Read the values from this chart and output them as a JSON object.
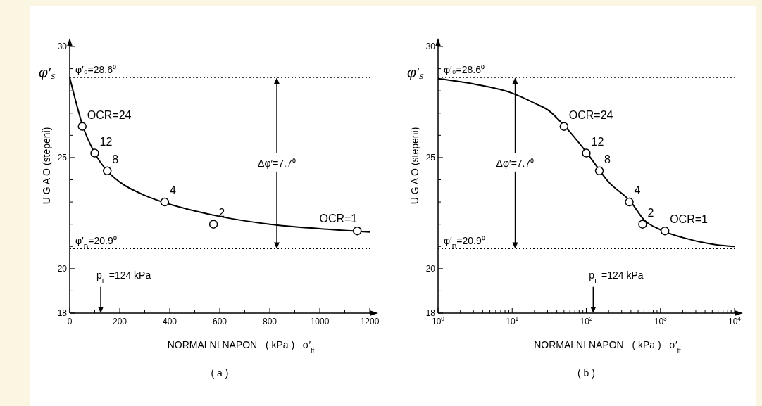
{
  "chart_data": [
    {
      "type": "scatter",
      "title": "( a )",
      "xlabel": "NORMALNI NAPON   ( kPa )   σ′$_{ff}$",
      "ylabel": "U G A O (stepeni)",
      "xlim": [
        0,
        1200
      ],
      "ylim": [
        18,
        30
      ],
      "xticks": [
        0,
        {
          "value": 100,
          "label": null
        },
        200,
        {
          "value": 300,
          "label": null
        },
        400,
        {
          "value": 500,
          "label": null
        },
        600,
        {
          "value": 700,
          "label": null
        },
        800,
        {
          "value": 900,
          "label": null
        },
        1000,
        {
          "value": 1100,
          "label": null
        },
        1200
      ],
      "yticks": [
        18,
        {
          "value": 19,
          "label": null
        },
        20,
        {
          "value": 21,
          "label": null
        },
        {
          "value": 22,
          "label": null
        },
        {
          "value": 23,
          "label": null
        },
        {
          "value": 24,
          "label": null
        },
        25,
        {
          "value": 26,
          "label": null
        },
        {
          "value": 27,
          "label": null
        },
        {
          "value": 28,
          "label": null
        },
        {
          "value": 29,
          "label": null
        },
        30
      ],
      "grid": false,
      "series": [
        {
          "type": "line",
          "color": "#000000",
          "x": [
            0,
            25,
            50,
            100,
            150,
            200,
            300,
            400,
            500,
            600,
            800,
            1000,
            1200
          ],
          "values": [
            28.6,
            27.5,
            26.5,
            25.2,
            24.4,
            23.9,
            23.3,
            22.9,
            22.6,
            22.35,
            22.0,
            21.8,
            21.65
          ]
        },
        {
          "type": "scatter",
          "color": "#000000",
          "marker": "circle",
          "x": [
            50,
            100,
            150,
            380,
            575,
            1150
          ],
          "values": [
            26.4,
            25.2,
            24.4,
            23.0,
            22.0,
            21.7
          ]
        }
      ],
      "ref_lines": [
        {
          "axis": "y",
          "value": 28.6,
          "label": "φ′₀=28.6⁰",
          "line_style": "dotted"
        },
        {
          "axis": "y",
          "value": 20.9,
          "label": "φ′$_{B}$=20.9⁰",
          "line_style": "dotted"
        },
        {
          "axis": "x",
          "value": 124,
          "label": "p$_{F}$ =124 kPa"
        }
      ],
      "annotations": [
        "φ′ₛ",
        "Δφ′=7.7⁰",
        {
          "text": "OCR=24",
          "x": 50,
          "y": 26.4
        },
        {
          "text": "12",
          "x": 100,
          "y": 25.2
        },
        {
          "text": "8",
          "x": 150,
          "y": 24.4
        },
        {
          "text": "4",
          "x": 380,
          "y": 23.0
        },
        {
          "text": "2",
          "x": 575,
          "y": 22.0
        },
        {
          "text": "OCR=1",
          "x": 1150,
          "y": 21.7
        }
      ]
    },
    {
      "type": "scatter",
      "title": "( b )",
      "xlabel": "NORMALNI NAPON   ( kPa )   σ′$_{ff}$",
      "ylabel": "U G A O (stepeni)",
      "log": "x",
      "xlim": [
        1,
        10000
      ],
      "ylim": [
        18,
        30
      ],
      "xticks": [
        {
          "value": 1,
          "label": "10$^{0}$"
        },
        {
          "value": 2,
          "label": null
        },
        {
          "value": 3,
          "label": null
        },
        {
          "value": 4,
          "label": null
        },
        {
          "value": 5,
          "label": null
        },
        {
          "value": 6,
          "label": null
        },
        {
          "value": 7,
          "label": null
        },
        {
          "value": 8,
          "label": null
        },
        {
          "value": 9,
          "label": null
        },
        {
          "value": 10,
          "label": "10$^{1}$"
        },
        {
          "value": 20,
          "label": null
        },
        {
          "value": 30,
          "label": null
        },
        {
          "value": 40,
          "label": null
        },
        {
          "value": 50,
          "label": null
        },
        {
          "value": 60,
          "label": null
        },
        {
          "value": 70,
          "label": null
        },
        {
          "value": 80,
          "label": null
        },
        {
          "value": 90,
          "label": null
        },
        {
          "value": 100,
          "label": "10$^{2}$"
        },
        {
          "value": 200,
          "label": null
        },
        {
          "value": 300,
          "label": null
        },
        {
          "value": 400,
          "label": null
        },
        {
          "value": 500,
          "label": null
        },
        {
          "value": 600,
          "label": null
        },
        {
          "value": 700,
          "label": null
        },
        {
          "value": 800,
          "label": null
        },
        {
          "value": 900,
          "label": null
        },
        {
          "value": 1000,
          "label": "10$^{3}$"
        },
        {
          "value": 2000,
          "label": null
        },
        {
          "value": 3000,
          "label": null
        },
        {
          "value": 4000,
          "label": null
        },
        {
          "value": 5000,
          "label": null
        },
        {
          "value": 6000,
          "label": null
        },
        {
          "value": 7000,
          "label": null
        },
        {
          "value": 8000,
          "label": null
        },
        {
          "value": 9000,
          "label": null
        },
        {
          "value": 10000,
          "label": "10$^{4}$"
        }
      ],
      "yticks": [
        18,
        {
          "value": 19,
          "label": null
        },
        20,
        {
          "value": 21,
          "label": null
        },
        {
          "value": 22,
          "label": null
        },
        {
          "value": 23,
          "label": null
        },
        {
          "value": 24,
          "label": null
        },
        25,
        {
          "value": 26,
          "label": null
        },
        {
          "value": 27,
          "label": null
        },
        {
          "value": 28,
          "label": null
        },
        {
          "value": 29,
          "label": null
        },
        30
      ],
      "grid": false,
      "series": [
        {
          "type": "line",
          "color": "#000000",
          "x": [
            1,
            3.16,
            10,
            20,
            31.6,
            50,
            100,
            200,
            400,
            600,
            1000,
            2000,
            5000,
            10000
          ],
          "values": [
            28.55,
            28.3,
            27.9,
            27.45,
            27.1,
            26.45,
            25.25,
            23.9,
            23.0,
            22.2,
            21.75,
            21.4,
            21.1,
            21.0
          ]
        },
        {
          "type": "scatter",
          "color": "#000000",
          "marker": "circle",
          "x": [
            50,
            100,
            150,
            380,
            575,
            1150
          ],
          "values": [
            26.4,
            25.2,
            24.4,
            23.0,
            22.0,
            21.7
          ]
        }
      ],
      "ref_lines": [
        {
          "axis": "y",
          "value": 28.6,
          "label": "φ′₀=28.6⁰",
          "line_style": "dotted"
        },
        {
          "axis": "y",
          "value": 20.9,
          "label": "φ′$_{B}$=20.9⁰",
          "line_style": "dotted"
        },
        {
          "axis": "x",
          "value": 124,
          "label": "p$_{F}$ =124 kPa"
        }
      ],
      "annotations": [
        "φ′ₛ",
        "Δφ′=7.7⁰",
        {
          "text": "OCR=24",
          "x": 50,
          "y": 26.4
        },
        {
          "text": "12",
          "x": 100,
          "y": 25.2
        },
        {
          "text": "8",
          "x": 150,
          "y": 24.4
        },
        {
          "text": "4",
          "x": 380,
          "y": 23.0
        },
        {
          "text": "2",
          "x": 575,
          "y": 22.0
        },
        {
          "text": "OCR=1",
          "x": 1150,
          "y": 21.7
        }
      ]
    }
  ]
}
